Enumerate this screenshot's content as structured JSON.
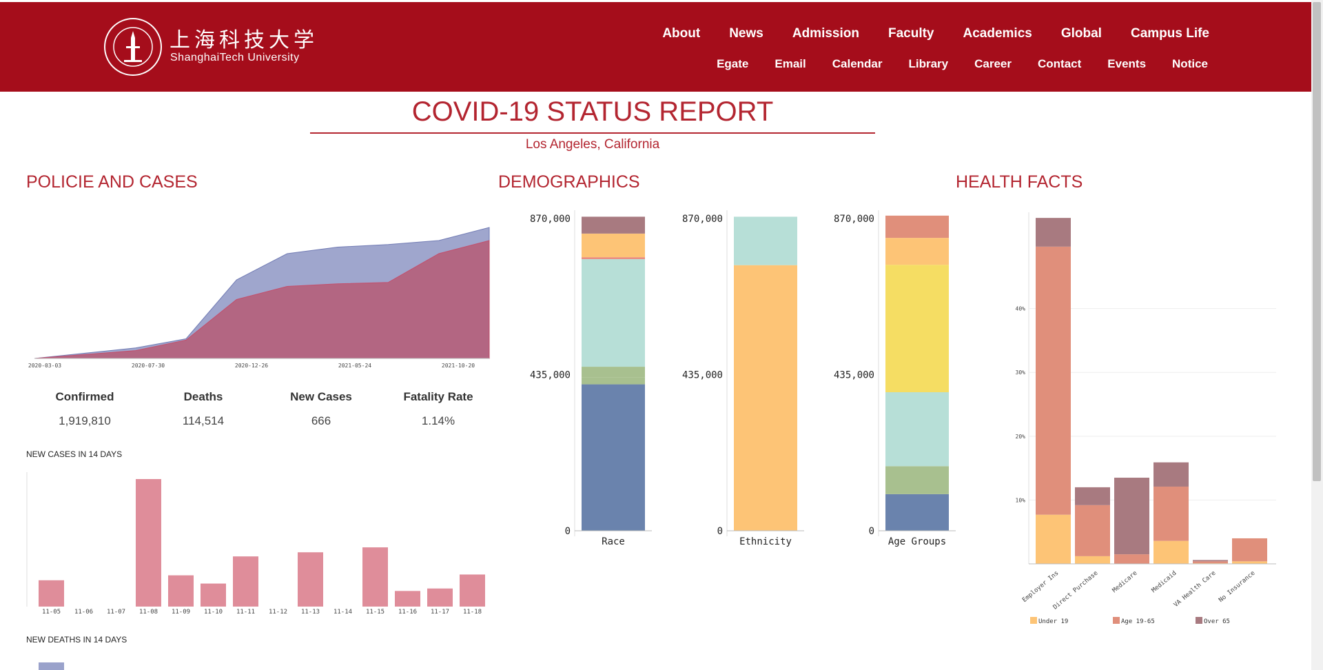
{
  "header": {
    "logo_cn": "上海科技大学",
    "logo_en": "ShanghaiTech University",
    "nav_primary": [
      "About",
      "News",
      "Admission",
      "Faculty",
      "Academics",
      "Global",
      "Campus Life"
    ],
    "nav_secondary": [
      "Egate",
      "Email",
      "Calendar",
      "Library",
      "Career",
      "Contact",
      "Events",
      "Notice"
    ]
  },
  "report": {
    "title": "COVID-19 STATUS REPORT",
    "location": "Los Angeles, California"
  },
  "sections": {
    "policies": "POLICIE AND CASES",
    "demographics": "DEMOGRAPHICS",
    "health": "HEALTH FACTS"
  },
  "stats": [
    {
      "label": "Confirmed",
      "value": "1,919,810"
    },
    {
      "label": "Deaths",
      "value": "114,514"
    },
    {
      "label": "New Cases",
      "value": "666"
    },
    {
      "label": "Fatality Rate",
      "value": "1.14%"
    }
  ],
  "new_cases_title": "NEW CASES IN 14 DAYS",
  "new_deaths_title": "NEW DEATHS IN 14 DAYS",
  "colors": {
    "brand": "#a50d1b",
    "accent": "#b32530",
    "blue_area": "#9aa2cb",
    "red_area": "#b5637f",
    "bar_pink": "#df8d9a",
    "bar_blue": "#9aa2cb"
  },
  "chart_data": [
    {
      "type": "area",
      "xticks": [
        "2020-03-03",
        "2020-07-30",
        "2020-12-26",
        "2021-05-24",
        "2021-10-20"
      ],
      "series": [
        {
          "values": [
            0,
            0.04,
            0.08,
            0.15,
            0.6,
            0.8,
            0.85,
            0.87,
            0.9,
            1.0
          ]
        },
        {
          "values": [
            0,
            0.03,
            0.06,
            0.14,
            0.45,
            0.55,
            0.57,
            0.58,
            0.8,
            0.9
          ]
        }
      ]
    },
    {
      "type": "bar",
      "categories": [
        "11-05",
        "11-06",
        "11-07",
        "11-08",
        "11-09",
        "11-10",
        "11-11",
        "11-12",
        "11-13",
        "11-14",
        "11-15",
        "11-16",
        "11-17",
        "11-18"
      ],
      "values": [
        32,
        0,
        0,
        155,
        38,
        28,
        61,
        0,
        66,
        0,
        72,
        19,
        22,
        39
      ]
    },
    {
      "type": "bar",
      "stacked": true,
      "categories": [
        "Race",
        "Ethnicity",
        "Age Groups"
      ],
      "yticks": [
        "0",
        "435,000",
        "870,000"
      ],
      "ylim": [
        0,
        870000
      ],
      "stacks": [
        [
          {
            "value": 408000,
            "color": "#6a83ad"
          },
          {
            "value": 20000,
            "color": "#a8c08f"
          },
          {
            "value": 29000,
            "color": "#a8c08f"
          },
          {
            "value": 300000,
            "color": "#b7dfd7"
          },
          {
            "value": 5000,
            "color": "#e8867a"
          },
          {
            "value": 66000,
            "color": "#fdc476"
          },
          {
            "value": 47000,
            "color": "#a87a80"
          }
        ],
        [
          {
            "value": 740000,
            "color": "#fdc476"
          },
          {
            "value": 135000,
            "color": "#b7dfd7"
          }
        ],
        [
          {
            "value": 102000,
            "color": "#6a83ad"
          },
          {
            "value": 78000,
            "color": "#a8c08f"
          },
          {
            "value": 206000,
            "color": "#b7dfd7"
          },
          {
            "value": 355000,
            "color": "#f5dd63"
          },
          {
            "value": 75000,
            "color": "#fdc476"
          },
          {
            "value": 62000,
            "color": "#e08f7b"
          }
        ]
      ]
    },
    {
      "type": "bar",
      "stacked": true,
      "categories": [
        "Employer Ins",
        "Direct Purchase",
        "Medicare",
        "Medicaid",
        "VA Health Care",
        "No Insurance"
      ],
      "yticks": [
        "10%",
        "20%",
        "30%",
        "40%"
      ],
      "ylim": [
        0,
        54
      ],
      "series": [
        {
          "name": "Under 19",
          "color": "#fdc476",
          "values": [
            7.7,
            1.2,
            0,
            3.6,
            0.1,
            0.4
          ]
        },
        {
          "name": "Age 19-65",
          "color": "#e08f7b",
          "values": [
            42,
            8,
            1.5,
            8.5,
            0.3,
            3.6
          ]
        },
        {
          "name": "Over 65",
          "color": "#a87a80",
          "values": [
            4.5,
            2.8,
            12,
            3.8,
            0.2,
            0
          ]
        }
      ]
    }
  ]
}
